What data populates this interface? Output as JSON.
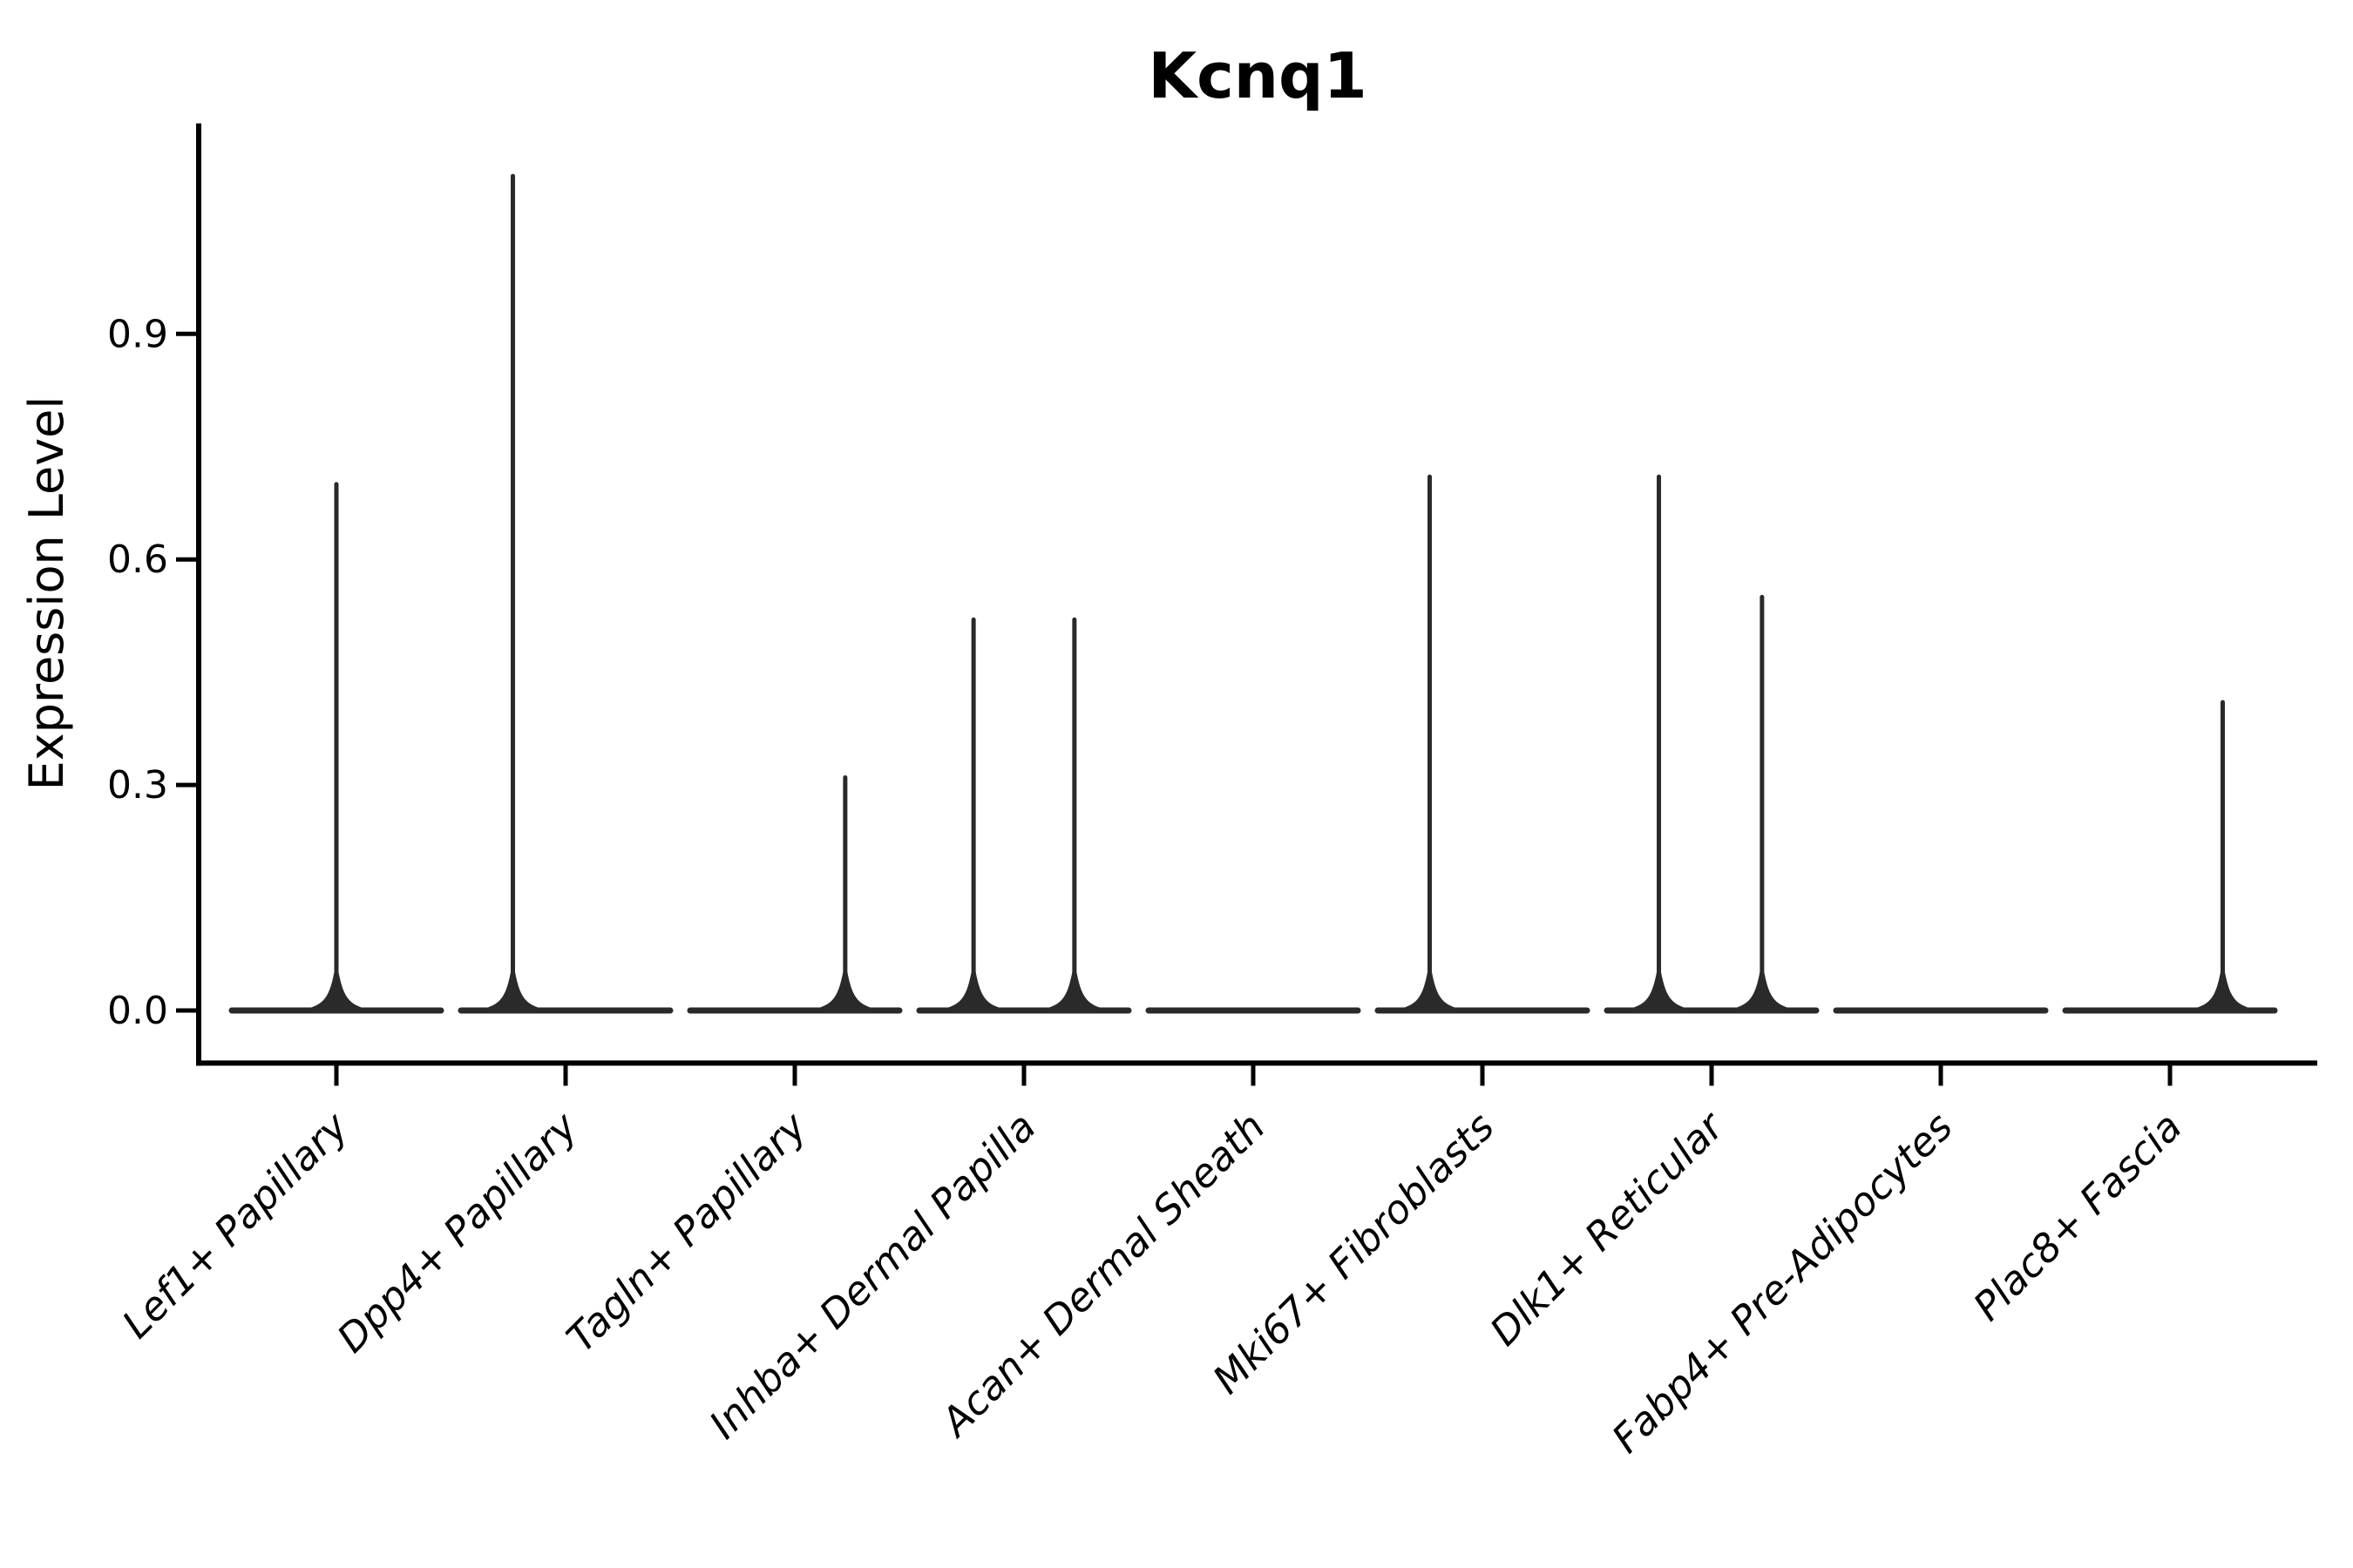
{
  "title": "Kcnq1",
  "axes": {
    "ylabel": "Expression Level",
    "xlabel": "",
    "ytick_labels": [
      "0.0",
      "0.3",
      "0.6",
      "0.9"
    ],
    "ytick_values": [
      0.0,
      0.3,
      0.6,
      0.9
    ],
    "ylim": [
      -0.07,
      1.18
    ],
    "grid": false,
    "legend": "none"
  },
  "chart_data": {
    "type": "violin",
    "title": "Kcnq1",
    "ylabel": "Expression Level",
    "categories": [
      "Lef1+ Papillary",
      "Dpp4+ Papillary",
      "Tagln+ Papillary",
      "Inhba+ Dermal Papilla",
      "Acan+ Dermal Sheath",
      "Mki67+ Fibroblasts",
      "Dlk1+ Reticular",
      "Fabp4+ Pre-Adipocytes",
      "Plac8+ Fascia"
    ],
    "series": [
      {
        "name": "Lef1+ Papillary",
        "zero_density_body": true,
        "body_value": 0.0,
        "spikes": [
          {
            "offset_frac": 0.0,
            "max_expression": 0.7
          }
        ]
      },
      {
        "name": "Dpp4+ Papillary",
        "zero_density_body": true,
        "body_value": 0.0,
        "spikes": [
          {
            "offset_frac": -0.23,
            "max_expression": 1.11
          }
        ]
      },
      {
        "name": "Tagln+ Papillary",
        "zero_density_body": true,
        "body_value": 0.0,
        "spikes": [
          {
            "offset_frac": 0.22,
            "max_expression": 0.31
          }
        ]
      },
      {
        "name": "Inhba+ Dermal Papilla",
        "zero_density_body": true,
        "body_value": 0.0,
        "spikes": [
          {
            "offset_frac": -0.22,
            "max_expression": 0.52
          },
          {
            "offset_frac": 0.22,
            "max_expression": 0.52
          }
        ]
      },
      {
        "name": "Acan+ Dermal Sheath",
        "zero_density_body": true,
        "body_value": 0.0,
        "spikes": []
      },
      {
        "name": "Mki67+ Fibroblasts",
        "zero_density_body": true,
        "body_value": 0.0,
        "spikes": [
          {
            "offset_frac": -0.23,
            "max_expression": 0.71
          }
        ]
      },
      {
        "name": "Dlk1+ Reticular",
        "zero_density_body": true,
        "body_value": 0.0,
        "spikes": [
          {
            "offset_frac": -0.23,
            "max_expression": 0.71
          },
          {
            "offset_frac": 0.22,
            "max_expression": 0.55
          }
        ]
      },
      {
        "name": "Fabp4+ Pre-Adipocytes",
        "zero_density_body": true,
        "body_value": 0.0,
        "spikes": []
      },
      {
        "name": "Plac8+ Fascia",
        "zero_density_body": true,
        "body_value": 0.0,
        "spikes": [
          {
            "offset_frac": 0.23,
            "max_expression": 0.41
          }
        ]
      }
    ]
  },
  "style": {
    "violin_color": "#2a2a2a",
    "axis_color": "#000000",
    "text_color": "#000000",
    "background": "#ffffff"
  }
}
